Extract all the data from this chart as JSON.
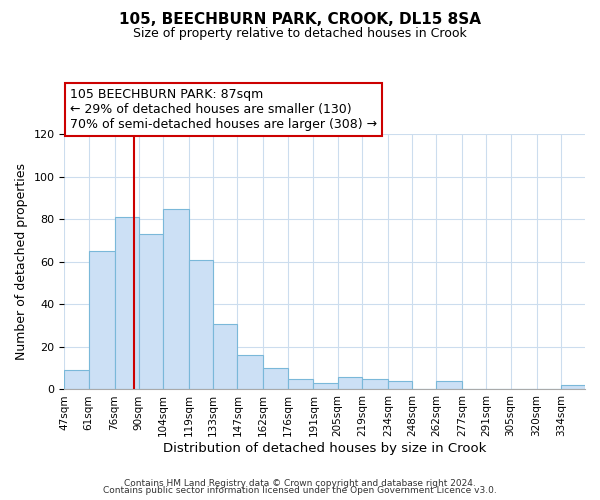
{
  "title": "105, BEECHBURN PARK, CROOK, DL15 8SA",
  "subtitle": "Size of property relative to detached houses in Crook",
  "xlabel": "Distribution of detached houses by size in Crook",
  "ylabel": "Number of detached properties",
  "bin_labels": [
    "47sqm",
    "61sqm",
    "76sqm",
    "90sqm",
    "104sqm",
    "119sqm",
    "133sqm",
    "147sqm",
    "162sqm",
    "176sqm",
    "191sqm",
    "205sqm",
    "219sqm",
    "234sqm",
    "248sqm",
    "262sqm",
    "277sqm",
    "291sqm",
    "305sqm",
    "320sqm",
    "334sqm"
  ],
  "bin_edges": [
    47,
    61,
    76,
    90,
    104,
    119,
    133,
    147,
    162,
    176,
    191,
    205,
    219,
    234,
    248,
    262,
    277,
    291,
    305,
    320,
    334,
    348
  ],
  "bar_heights": [
    9,
    65,
    81,
    73,
    85,
    61,
    31,
    16,
    10,
    5,
    3,
    6,
    5,
    4,
    0,
    4,
    0,
    0,
    0,
    0,
    2
  ],
  "bar_color": "#cce0f5",
  "bar_edge_color": "#7ab8d9",
  "vline_x": 87,
  "vline_color": "#cc0000",
  "annotation_title": "105 BEECHBURN PARK: 87sqm",
  "annotation_line1": "← 29% of detached houses are smaller (130)",
  "annotation_line2": "70% of semi-detached houses are larger (308) →",
  "annotation_box_color": "#ffffff",
  "annotation_box_edge": "#cc0000",
  "ylim": [
    0,
    120
  ],
  "yticks": [
    0,
    20,
    40,
    60,
    80,
    100,
    120
  ],
  "footer1": "Contains HM Land Registry data © Crown copyright and database right 2024.",
  "footer2": "Contains public sector information licensed under the Open Government Licence v3.0.",
  "background_color": "#ffffff",
  "grid_color": "#ccddee"
}
